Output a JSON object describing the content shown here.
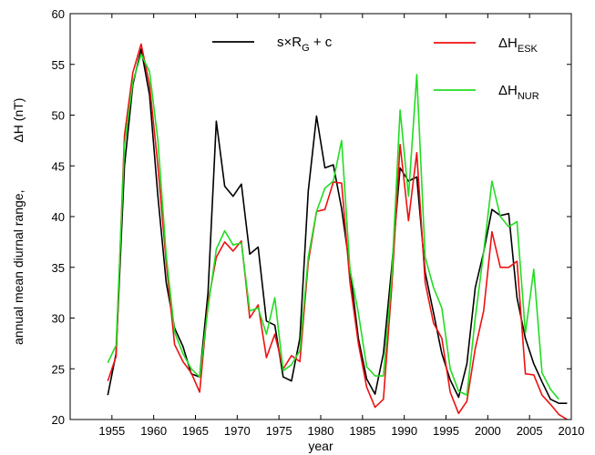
{
  "chart_data": {
    "type": "line",
    "xlabel": "year",
    "ylabel_prefix": "annual mean diurnal range,",
    "ylabel_main": "ΔH (nT)",
    "xlim": [
      1950,
      2010
    ],
    "ylim": [
      20,
      60
    ],
    "xticks": [
      1955,
      1960,
      1965,
      1970,
      1975,
      1980,
      1985,
      1990,
      1995,
      2000,
      2005,
      2010
    ],
    "yticks": [
      20,
      25,
      30,
      35,
      40,
      45,
      50,
      55,
      60
    ],
    "grid": false,
    "legend_placement": "top",
    "series": [
      {
        "id": "model",
        "legend": {
          "main": "s×R",
          "sub": "G",
          "tail": " + c"
        },
        "color": "#000000",
        "x": [
          1954.5,
          1955.5,
          1956.5,
          1957.5,
          1958.5,
          1959.5,
          1960.5,
          1961.5,
          1962.5,
          1963.5,
          1964.5,
          1965.5,
          1966.5,
          1967.5,
          1968.5,
          1969.5,
          1970.5,
          1971.5,
          1972.5,
          1973.5,
          1974.5,
          1975.5,
          1976.5,
          1977.5,
          1978.5,
          1979.5,
          1980.5,
          1981.5,
          1982.5,
          1983.5,
          1984.5,
          1985.5,
          1986.5,
          1987.5,
          1988.5,
          1989.5,
          1990.5,
          1991.5,
          1992.5,
          1993.5,
          1994.5,
          1995.5,
          1996.5,
          1997.5,
          1998.5,
          1999.5,
          2000.5,
          2001.5,
          2002.5,
          2003.5,
          2004.5,
          2005.5,
          2006.5,
          2007.5,
          2008.5,
          2009.5
        ],
        "y": [
          22.4,
          26.5,
          45.0,
          53.0,
          56.5,
          52.0,
          42.0,
          33.5,
          29.0,
          27.2,
          24.5,
          24.2,
          32.5,
          49.4,
          43.0,
          42.0,
          43.2,
          36.3,
          37.0,
          29.7,
          29.3,
          24.2,
          23.8,
          28.0,
          42.5,
          49.9,
          44.8,
          45.1,
          40.8,
          34.8,
          28.0,
          24.0,
          22.5,
          26.5,
          35.0,
          44.8,
          43.5,
          43.9,
          34.5,
          30.5,
          26.5,
          23.9,
          22.2,
          25.5,
          33.0,
          36.5,
          40.7,
          40.1,
          40.3,
          32.0,
          28.0,
          25.5,
          23.7,
          22.0,
          21.6,
          21.6
        ]
      },
      {
        "id": "esk",
        "legend": {
          "main": "ΔH",
          "sub": "ESK",
          "tail": ""
        },
        "color": "#ee1111",
        "x": [
          1954.5,
          1955.5,
          1956.5,
          1957.5,
          1958.5,
          1959.5,
          1960.5,
          1961.5,
          1962.5,
          1963.5,
          1964.5,
          1965.5,
          1966.5,
          1967.5,
          1968.5,
          1969.5,
          1970.5,
          1971.5,
          1972.5,
          1973.5,
          1974.5,
          1975.5,
          1976.5,
          1977.5,
          1978.5,
          1979.5,
          1980.5,
          1981.5,
          1982.5,
          1983.5,
          1984.5,
          1985.5,
          1986.5,
          1987.5,
          1988.5,
          1989.5,
          1990.5,
          1991.5,
          1992.5,
          1993.5,
          1994.5,
          1995.5,
          1996.5,
          1997.5,
          1998.5,
          1999.5,
          2000.5,
          2001.5,
          2002.5,
          2003.5,
          2004.5,
          2005.5,
          2006.5,
          2007.5,
          2008.5,
          2009.5
        ],
        "y": [
          23.8,
          26.2,
          48.0,
          54.2,
          57.0,
          53.0,
          45.0,
          35.5,
          27.4,
          25.7,
          24.6,
          22.7,
          31.5,
          36.0,
          37.5,
          36.6,
          37.6,
          30.0,
          31.3,
          26.1,
          28.4,
          25.0,
          26.3,
          25.7,
          35.5,
          40.5,
          40.7,
          43.4,
          43.3,
          33.5,
          27.5,
          23.2,
          21.2,
          22.0,
          33.0,
          47.1,
          39.6,
          46.3,
          33.5,
          29.5,
          28.0,
          22.7,
          20.6,
          21.8,
          27.0,
          30.7,
          38.5,
          35.0,
          35.0,
          35.6,
          24.5,
          24.4,
          22.4,
          21.5,
          20.5,
          20.0
        ]
      },
      {
        "id": "nur",
        "legend": {
          "main": "ΔH",
          "sub": "NUR",
          "tail": ""
        },
        "color": "#22dd22",
        "x": [
          1954.5,
          1955.5,
          1956.5,
          1957.5,
          1958.5,
          1959.5,
          1960.5,
          1961.5,
          1962.5,
          1963.5,
          1964.5,
          1965.5,
          1966.5,
          1967.5,
          1968.5,
          1969.5,
          1970.5,
          1971.5,
          1972.5,
          1973.5,
          1974.5,
          1975.5,
          1976.5,
          1977.5,
          1978.5,
          1979.5,
          1980.5,
          1981.5,
          1982.5,
          1983.5,
          1984.5,
          1985.5,
          1986.5,
          1987.5,
          1988.5,
          1989.5,
          1990.5,
          1991.5,
          1992.5,
          1993.5,
          1994.5,
          1995.5,
          1996.5,
          1997.5,
          1998.5,
          1999.5,
          2000.5,
          2001.5,
          2002.5,
          2003.5,
          2004.5,
          2005.5,
          2006.5,
          2007.5,
          2008.5
        ],
        "y": [
          25.6,
          27.3,
          47.0,
          53.3,
          56.0,
          54.3,
          47.5,
          36.2,
          28.6,
          26.5,
          25.0,
          24.2,
          31.0,
          36.8,
          38.6,
          37.2,
          37.4,
          30.7,
          31.0,
          28.4,
          32.0,
          24.8,
          25.4,
          26.8,
          36.0,
          40.5,
          42.8,
          43.5,
          47.5,
          34.8,
          30.5,
          25.2,
          24.3,
          24.3,
          34.0,
          50.5,
          42.0,
          54.0,
          36.0,
          33.0,
          31.0,
          25.0,
          22.8,
          22.4,
          30.0,
          36.5,
          43.5,
          40.0,
          39.0,
          39.5,
          28.5,
          34.8,
          24.6,
          23.0,
          22.0
        ]
      }
    ]
  }
}
